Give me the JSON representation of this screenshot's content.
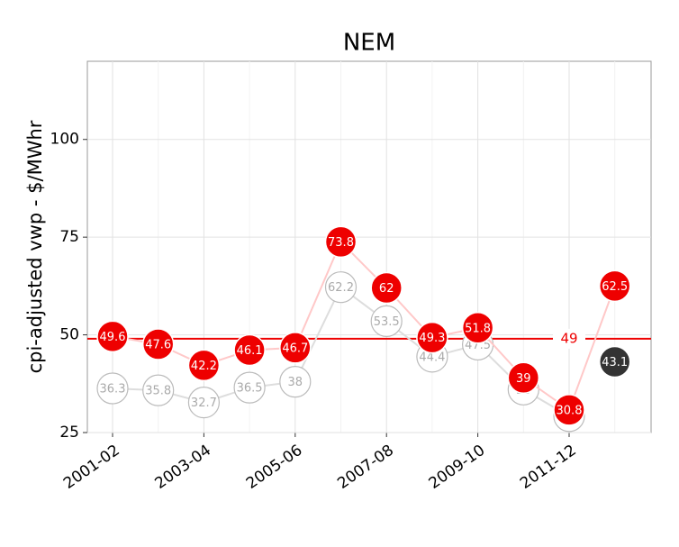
{
  "chart_data": {
    "type": "line",
    "title": "NEM",
    "y_label": "cpi-adjusted vwp - $/MWhr",
    "categories": [
      "2001-02",
      null,
      "2003-04",
      null,
      "2005-06",
      null,
      "2007-08",
      null,
      "2009-10",
      null,
      "2011-12",
      null
    ],
    "series": [
      {
        "color": "#bbbbbb",
        "values": [
          36.3,
          35.8,
          32.7,
          36.5,
          38,
          62.2,
          53.5,
          44.4,
          47.5,
          36,
          29.2,
          null
        ]
      },
      {
        "color": "#333333",
        "values": [
          null,
          null,
          null,
          null,
          null,
          null,
          null,
          null,
          null,
          null,
          null,
          43.1
        ]
      },
      {
        "color": "#ee0000",
        "values": [
          49.6,
          47.6,
          42.2,
          46.1,
          46.7,
          73.8,
          62,
          49.3,
          51.8,
          39,
          30.8,
          62.5
        ]
      }
    ],
    "hline": {
      "value": 49,
      "color": "#ee0000"
    },
    "ylim": [
      25,
      120
    ],
    "yticks": [
      25,
      50,
      75,
      100
    ],
    "grid": true
  }
}
